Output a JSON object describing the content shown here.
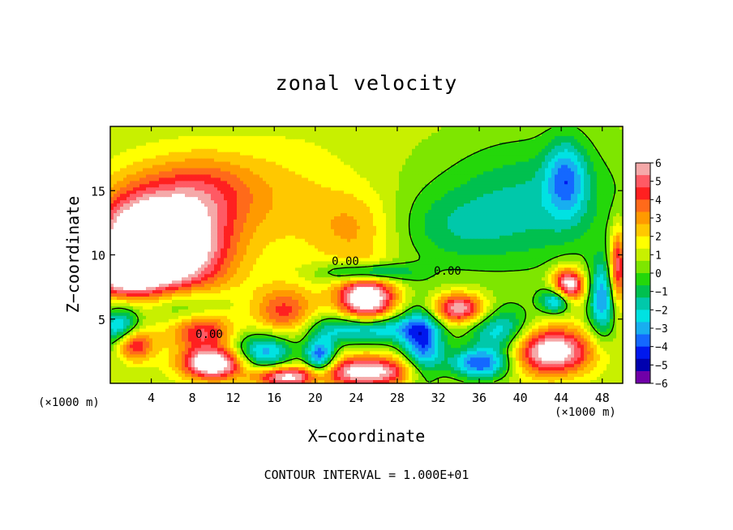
{
  "chart_data": {
    "type": "heatmap",
    "title": "zonal velocity",
    "xlabel": "X−coordinate",
    "ylabel": "Z−coordinate",
    "x_multiplier_label": "(×1000 m)",
    "footnote": "CONTOUR INTERVAL = 1.000E+01",
    "xlim": [
      0,
      50
    ],
    "ylim": [
      0,
      20
    ],
    "x_ticks": [
      4,
      8,
      12,
      16,
      20,
      24,
      28,
      32,
      36,
      40,
      44,
      48
    ],
    "y_ticks": [
      5,
      10,
      15
    ],
    "colorbar": {
      "range": [
        -6,
        6
      ],
      "tick_labels": [
        "6",
        "5",
        "4",
        "3",
        "2",
        "1",
        "0",
        "−1",
        "−2",
        "−3",
        "−4",
        "−5",
        "−6"
      ],
      "colors": [
        "#f5a9a9",
        "#ff5a64",
        "#ff2020",
        "#ff6a1a",
        "#ff9a00",
        "#ffc800",
        "#ffff00",
        "#c8f000",
        "#7ee600",
        "#24d70a",
        "#00c04f",
        "#00c8aa",
        "#00e2e2",
        "#18aef0",
        "#1468ff",
        "#0018ee",
        "#0000ae",
        "#7000a8"
      ]
    },
    "contour_labels": [
      "0.00",
      "0.00",
      "0.00"
    ],
    "fields": {
      "background": 0.9,
      "features": [
        {
          "x": 6,
          "z": 10.5,
          "value": 7.5,
          "sx": 5.5,
          "sz": 3.8,
          "note": "strong positive core (white = above range)"
        },
        {
          "x": 2,
          "z": 11,
          "value": 4,
          "sx": 4,
          "sz": 4
        },
        {
          "x": 9,
          "z": 15,
          "value": 3,
          "sx": 6,
          "sz": 3
        },
        {
          "x": 18,
          "z": 14,
          "value": 1.2,
          "sx": 6,
          "sz": 5
        },
        {
          "x": 24,
          "z": 12,
          "value": 1.8,
          "sx": 4,
          "sz": 3
        },
        {
          "x": 41,
          "z": 14,
          "value": -2.2,
          "sx": 9,
          "sz": 5
        },
        {
          "x": 44.5,
          "z": 16,
          "value": -3,
          "sx": 2,
          "sz": 3
        },
        {
          "x": 33,
          "z": 12,
          "value": -1.2,
          "sx": 6,
          "sz": 3
        },
        {
          "x": 25,
          "z": 6.5,
          "value": 7,
          "sx": 2.8,
          "sz": 2.2
        },
        {
          "x": 25,
          "z": 4.3,
          "value": -5,
          "sx": 5,
          "sz": 1.2
        },
        {
          "x": 25,
          "z": 8.6,
          "value": -4.5,
          "sx": 4,
          "sz": 0.8
        },
        {
          "x": 25,
          "z": 0.9,
          "value": 6,
          "sx": 5,
          "sz": 1.2
        },
        {
          "x": 34,
          "z": 5.8,
          "value": 5.5,
          "sx": 2.8,
          "sz": 1.2
        },
        {
          "x": 44.7,
          "z": 7.5,
          "value": 7,
          "sx": 1.6,
          "sz": 1.4
        },
        {
          "x": 43.7,
          "z": 6.5,
          "value": -5,
          "sx": 1.6,
          "sz": 1
        },
        {
          "x": 43,
          "z": 2.5,
          "value": 6.5,
          "sx": 4,
          "sz": 1.8
        },
        {
          "x": 48,
          "z": 6.5,
          "value": -4,
          "sx": 1.4,
          "sz": 3
        },
        {
          "x": 1,
          "z": 4,
          "value": -5,
          "sx": 2,
          "sz": 2
        },
        {
          "x": 2,
          "z": 3,
          "value": 6,
          "sx": 2,
          "sz": 1.3
        },
        {
          "x": 9,
          "z": 4,
          "value": 4,
          "sx": 3,
          "sz": 1.5
        },
        {
          "x": 10,
          "z": 1.5,
          "value": 7,
          "sx": 3,
          "sz": 1.2
        },
        {
          "x": 7,
          "z": 6,
          "value": -2.5,
          "sx": 4,
          "sz": 1.5
        },
        {
          "x": 17,
          "z": 5.5,
          "value": 3.5,
          "sx": 3,
          "sz": 2
        },
        {
          "x": 15,
          "z": 2.5,
          "value": -4,
          "sx": 3,
          "sz": 1.5
        },
        {
          "x": 17,
          "z": 0.5,
          "value": 5.5,
          "sx": 3,
          "sz": 0.8
        },
        {
          "x": 20.5,
          "z": 2,
          "value": -5,
          "sx": 1.5,
          "sz": 1.5
        },
        {
          "x": 30.5,
          "z": 3,
          "value": -4.5,
          "sx": 2,
          "sz": 3
        },
        {
          "x": 38,
          "z": 4,
          "value": -3.5,
          "sx": 3,
          "sz": 2
        },
        {
          "x": 36,
          "z": 1.5,
          "value": -4.5,
          "sx": 3,
          "sz": 1.2
        },
        {
          "x": 1,
          "z": 8,
          "value": 3,
          "sx": 3,
          "sz": 1.2
        },
        {
          "x": 49.5,
          "z": 9,
          "value": 5,
          "sx": 0.8,
          "sz": 3
        }
      ]
    }
  }
}
